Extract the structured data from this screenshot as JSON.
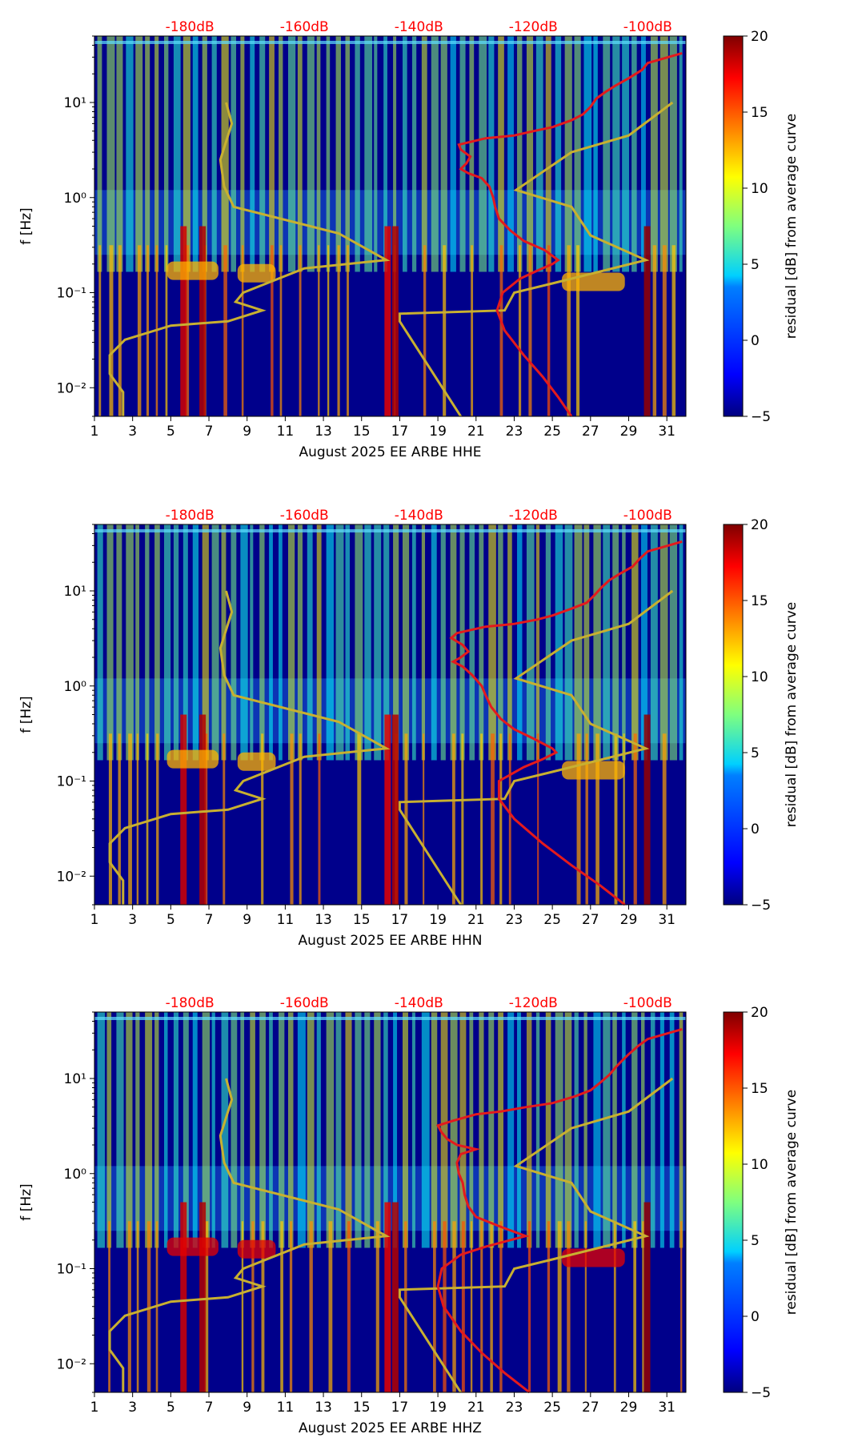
{
  "chart_data": [
    {
      "type": "heatmap",
      "channel": "HHE",
      "xlabel": "August 2025 EE ARBE  HHE",
      "ylabel": "f [Hz]",
      "xticks": [
        "1",
        "3",
        "5",
        "7",
        "9",
        "11",
        "13",
        "15",
        "17",
        "19",
        "21",
        "23",
        "25",
        "27",
        "29",
        "31"
      ],
      "yticks": [
        "10⁻²",
        "10⁻¹",
        "10⁰",
        "10¹"
      ],
      "xlim": [
        1,
        32
      ],
      "ylim_hz": [
        0.005,
        50
      ],
      "top_labels": [
        "-180dB",
        "-160dB",
        "-140dB",
        "-120dB",
        "-100dB"
      ],
      "top_label_x": [
        6,
        12,
        18,
        24,
        30
      ],
      "noise_model_curves": {
        "low_model_x_day": [
          2.5,
          2.5,
          1.8,
          1.8,
          2.6,
          5.0,
          8.0,
          9.8,
          8.4,
          8.8,
          12.0,
          16.3,
          13.8,
          8.3,
          7.8,
          7.6,
          8.2,
          7.9
        ],
        "high_model_x_day": [
          20.2,
          17.0,
          17.0,
          22.5,
          23.0,
          25.0,
          29.9,
          27.0,
          26.0,
          23.1,
          26.0,
          29.0,
          31.3
        ],
        "freq_hz": [
          0.005,
          0.009,
          0.014,
          0.022,
          0.032,
          0.045,
          0.05,
          0.065,
          0.08,
          0.1,
          0.18,
          0.22,
          0.42,
          0.8,
          1.3,
          2.5,
          6.0,
          10.0
        ],
        "freq_hz_high": [
          0.005,
          0.05,
          0.06,
          0.065,
          0.1,
          0.125,
          0.22,
          0.4,
          0.8,
          1.2,
          3.0,
          4.5,
          10.0
        ]
      },
      "residual_curve": {
        "x_day": [
          26.0,
          25.3,
          24.5,
          23.5,
          22.5,
          22.1,
          22.4,
          23.3,
          24.2,
          25.0,
          25.3,
          24.6,
          23.5,
          22.8,
          22.2,
          22.0,
          21.9,
          21.7,
          21.3,
          20.6,
          20.2,
          20.5,
          20.7,
          20.2,
          20.1,
          21.5,
          23.0,
          24.0,
          25.0,
          26.0,
          26.6,
          27.0,
          27.3,
          27.8,
          28.3,
          29.0,
          29.7,
          30.0,
          31.8
        ],
        "freq_hz": [
          0.005,
          0.008,
          0.013,
          0.022,
          0.04,
          0.065,
          0.1,
          0.14,
          0.17,
          0.2,
          0.22,
          0.28,
          0.35,
          0.45,
          0.6,
          0.8,
          1.0,
          1.3,
          1.6,
          1.8,
          2.0,
          2.3,
          2.7,
          3.2,
          3.6,
          4.2,
          4.5,
          5.0,
          5.5,
          6.5,
          7.5,
          9.0,
          11.0,
          13.0,
          15.0,
          18.0,
          22.0,
          26.0,
          33.0
        ]
      }
    },
    {
      "type": "heatmap",
      "channel": "HHN",
      "xlabel": "August 2025 EE ARBE  HHN",
      "ylabel": "f [Hz]",
      "xticks": [
        "1",
        "3",
        "5",
        "7",
        "9",
        "11",
        "13",
        "15",
        "17",
        "19",
        "21",
        "23",
        "25",
        "27",
        "29",
        "31"
      ],
      "yticks": [
        "10⁻²",
        "10⁻¹",
        "10⁰",
        "10¹"
      ],
      "xlim": [
        1,
        32
      ],
      "ylim_hz": [
        0.005,
        50
      ],
      "top_labels": [
        "-180dB",
        "-160dB",
        "-140dB",
        "-120dB",
        "-100dB"
      ],
      "top_label_x": [
        6,
        12,
        18,
        24,
        30
      ],
      "noise_model_curves": {
        "low_model_x_day": [
          2.5,
          2.5,
          1.8,
          1.8,
          2.6,
          5.0,
          8.0,
          9.8,
          8.4,
          8.8,
          12.0,
          16.3,
          13.8,
          8.3,
          7.8,
          7.6,
          8.2,
          7.9
        ],
        "high_model_x_day": [
          20.2,
          17.0,
          17.0,
          22.5,
          23.0,
          25.0,
          29.9,
          27.0,
          26.0,
          23.1,
          26.0,
          29.0,
          31.3
        ],
        "freq_hz": [
          0.005,
          0.009,
          0.014,
          0.022,
          0.032,
          0.045,
          0.05,
          0.065,
          0.08,
          0.1,
          0.18,
          0.22,
          0.42,
          0.8,
          1.3,
          2.5,
          6.0,
          10.0
        ],
        "freq_hz_high": [
          0.005,
          0.05,
          0.06,
          0.065,
          0.1,
          0.125,
          0.22,
          0.4,
          0.8,
          1.2,
          3.0,
          4.5,
          10.0
        ]
      },
      "residual_curve": {
        "x_day": [
          28.8,
          27.5,
          26.0,
          24.5,
          23.0,
          22.2,
          22.2,
          23.5,
          24.5,
          25.2,
          25.0,
          24.0,
          23.0,
          22.3,
          21.8,
          21.5,
          21.3,
          20.8,
          20.3,
          19.8,
          20.2,
          20.6,
          20.3,
          19.7,
          20.0,
          21.5,
          23.0,
          24.2,
          25.0,
          26.0,
          26.8,
          27.2,
          27.6,
          28.0,
          28.5,
          29.2,
          29.6,
          30.0,
          31.8
        ],
        "freq_hz": [
          0.005,
          0.008,
          0.013,
          0.022,
          0.04,
          0.065,
          0.1,
          0.14,
          0.17,
          0.2,
          0.22,
          0.28,
          0.35,
          0.45,
          0.6,
          0.8,
          1.0,
          1.3,
          1.6,
          1.8,
          2.0,
          2.3,
          2.7,
          3.2,
          3.6,
          4.2,
          4.5,
          5.0,
          5.5,
          6.5,
          7.5,
          9.0,
          11.0,
          13.0,
          15.0,
          18.0,
          22.0,
          26.0,
          33.0
        ]
      }
    },
    {
      "type": "heatmap",
      "channel": "HHZ",
      "xlabel": "August 2025 EE ARBE  HHZ",
      "ylabel": "f [Hz]",
      "xticks": [
        "1",
        "3",
        "5",
        "7",
        "9",
        "11",
        "13",
        "15",
        "17",
        "19",
        "21",
        "23",
        "25",
        "27",
        "29",
        "31"
      ],
      "yticks": [
        "10⁻²",
        "10⁻¹",
        "10⁰",
        "10¹"
      ],
      "xlim": [
        1,
        32
      ],
      "ylim_hz": [
        0.005,
        50
      ],
      "top_labels": [
        "-180dB",
        "-160dB",
        "-140dB",
        "-120dB",
        "-100dB"
      ],
      "top_label_x": [
        6,
        12,
        18,
        24,
        30
      ],
      "noise_model_curves": {
        "low_model_x_day": [
          2.5,
          2.5,
          1.8,
          1.8,
          2.6,
          5.0,
          8.0,
          9.8,
          8.4,
          8.8,
          12.0,
          16.3,
          13.8,
          8.3,
          7.8,
          7.6,
          8.2,
          7.9
        ],
        "high_model_x_day": [
          20.2,
          17.0,
          17.0,
          22.5,
          23.0,
          25.0,
          29.9,
          27.0,
          26.0,
          23.1,
          26.0,
          29.0,
          31.3
        ],
        "freq_hz": [
          0.005,
          0.009,
          0.014,
          0.022,
          0.032,
          0.045,
          0.05,
          0.065,
          0.08,
          0.1,
          0.18,
          0.22,
          0.42,
          0.8,
          1.3,
          2.5,
          6.0,
          10.0
        ],
        "freq_hz_high": [
          0.005,
          0.05,
          0.06,
          0.065,
          0.1,
          0.125,
          0.22,
          0.4,
          0.8,
          1.2,
          3.0,
          4.5,
          10.0
        ]
      },
      "residual_curve": {
        "x_day": [
          23.8,
          22.5,
          21.3,
          20.2,
          19.3,
          19.0,
          19.2,
          20.2,
          21.5,
          22.8,
          23.6,
          22.2,
          21.0,
          20.6,
          20.4,
          20.3,
          20.1,
          20.0,
          20.2,
          21.0,
          20.0,
          19.5,
          19.2,
          19.0,
          19.8,
          21.0,
          22.3,
          23.6,
          25.0,
          26.2,
          27.0,
          27.5,
          28.0,
          28.3,
          28.6,
          29.0,
          29.5,
          30.0,
          31.8
        ],
        "freq_hz": [
          0.005,
          0.008,
          0.013,
          0.022,
          0.04,
          0.065,
          0.1,
          0.14,
          0.17,
          0.2,
          0.22,
          0.28,
          0.35,
          0.45,
          0.6,
          0.8,
          1.0,
          1.3,
          1.6,
          1.8,
          2.0,
          2.3,
          2.7,
          3.2,
          3.6,
          4.2,
          4.5,
          5.0,
          5.5,
          6.5,
          7.5,
          9.0,
          11.0,
          13.0,
          15.0,
          18.0,
          22.0,
          26.0,
          33.0
        ]
      }
    }
  ],
  "colorbar": {
    "label": "residual [dB] from average curve",
    "ticks": [
      "20",
      "15",
      "10",
      "5",
      "0",
      "−5"
    ],
    "min": -5,
    "max": 20,
    "colormap": [
      "#00007f",
      "#0000ff",
      "#007fff",
      "#00ffff",
      "#7fff7f",
      "#ffff00",
      "#ff7f00",
      "#ff0000",
      "#7f0000"
    ]
  },
  "colors": {
    "background": "#00008b",
    "model_curve": "#c8b030",
    "residual_curve": "#e41a1c",
    "top_label": "#ff0000"
  }
}
